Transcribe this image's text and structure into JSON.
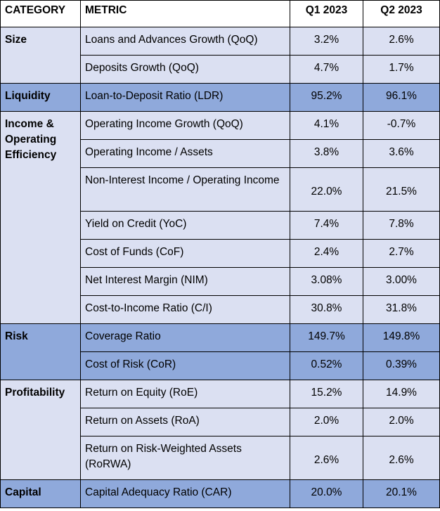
{
  "table": {
    "headers": {
      "category": "CATEGORY",
      "metric": "METRIC",
      "q1": "Q1 2023",
      "q2": "Q2 2023"
    },
    "groups": [
      {
        "category": "Size",
        "rows": [
          {
            "metric": "Loans and Advances Growth (QoQ)",
            "q1": "3.2%",
            "q2": "2.6%"
          },
          {
            "metric": "Deposits Growth (QoQ)",
            "q1": "4.7%",
            "q2": "1.7%"
          }
        ]
      },
      {
        "category": "Liquidity",
        "rows": [
          {
            "metric": "Loan-to-Deposit Ratio (LDR)",
            "q1": "95.2%",
            "q2": "96.1%"
          }
        ]
      },
      {
        "category": "Income & Operating Efficiency",
        "rows": [
          {
            "metric": "Operating Income Growth (QoQ)",
            "q1": "4.1%",
            "q2": "-0.7%"
          },
          {
            "metric": "Operating Income / Assets",
            "q1": "3.8%",
            "q2": "3.6%"
          },
          {
            "metric": "Non-Interest Income / Operating Income",
            "q1": "22.0%",
            "q2": "21.5%"
          },
          {
            "metric": "Yield on Credit (YoC)",
            "q1": "7.4%",
            "q2": "7.8%"
          },
          {
            "metric": "Cost of Funds (CoF)",
            "q1": "2.4%",
            "q2": "2.7%"
          },
          {
            "metric": "Net Interest Margin (NIM)",
            "q1": "3.08%",
            "q2": "3.00%"
          },
          {
            "metric": "Cost-to-Income Ratio (C/I)",
            "q1": "30.8%",
            "q2": "31.8%"
          }
        ]
      },
      {
        "category": "Risk",
        "rows": [
          {
            "metric": "Coverage Ratio",
            "q1": "149.7%",
            "q2": "149.8%"
          },
          {
            "metric": "Cost of Risk (CoR)",
            "q1": "0.52%",
            "q2": "0.39%"
          }
        ]
      },
      {
        "category": "Profitability",
        "rows": [
          {
            "metric": "Return on Equity (RoE)",
            "q1": "15.2%",
            "q2": "14.9%"
          },
          {
            "metric": "Return on Assets (RoA)",
            "q1": "2.0%",
            "q2": "2.0%"
          },
          {
            "metric": "Return on Risk-Weighted Assets (RoRWA)",
            "q1": "2.6%",
            "q2": "2.6%"
          }
        ]
      },
      {
        "category": "Capital",
        "rows": [
          {
            "metric": "Capital Adequacy Ratio (CAR)",
            "q1": "20.0%",
            "q2": "20.1%"
          }
        ]
      }
    ]
  },
  "colors": {
    "light_row": "#dbe0f2",
    "dark_row": "#8fa9db",
    "border": "#000000"
  }
}
